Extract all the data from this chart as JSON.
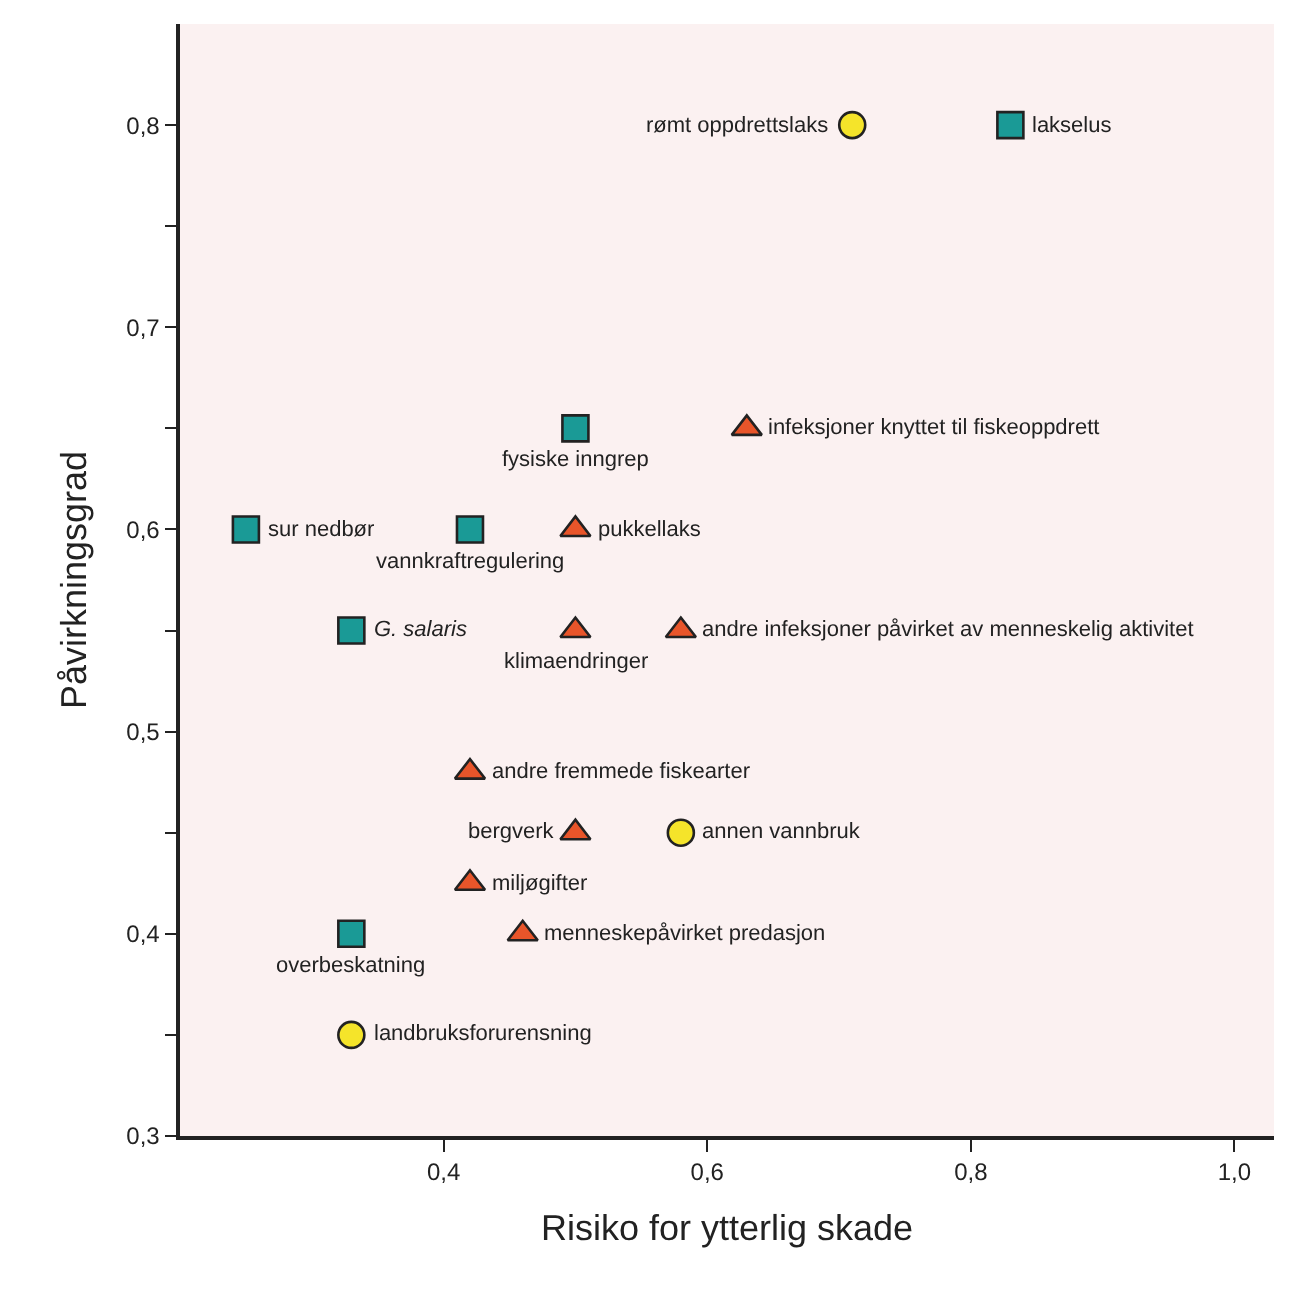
{
  "chart_data": {
    "type": "scatter",
    "xlabel": "Risiko for ytterlig skade",
    "ylabel": "Påvirkningsgrad",
    "xlim": [
      0.2,
      1.03
    ],
    "xticks": [
      {
        "value": 0.4,
        "label": "0,4"
      },
      {
        "value": 0.6,
        "label": "0,6"
      },
      {
        "value": 0.8,
        "label": "0,8"
      },
      {
        "value": 1.0,
        "label": "1,0"
      }
    ],
    "ylim": [
      0.3,
      0.85
    ],
    "yticks": [
      {
        "value": 0.3,
        "label": "0,3"
      },
      {
        "value": 0.35,
        "label": null
      },
      {
        "value": 0.4,
        "label": "0,4"
      },
      {
        "value": 0.45,
        "label": null
      },
      {
        "value": 0.5,
        "label": "0,5"
      },
      {
        "value": 0.55,
        "label": null
      },
      {
        "value": 0.6,
        "label": "0,6"
      },
      {
        "value": 0.65,
        "label": null
      },
      {
        "value": 0.7,
        "label": "0,7"
      },
      {
        "value": 0.75,
        "label": null
      },
      {
        "value": 0.8,
        "label": "0,8"
      }
    ],
    "grid": false,
    "series": [
      {
        "color": "#1a9a96",
        "marker": "square",
        "x": [
          0.83,
          0.5,
          0.25,
          0.42,
          0.33,
          0.33
        ],
        "values": [
          0.8,
          0.65,
          0.6,
          0.6,
          0.55,
          0.4
        ]
      },
      {
        "color": "#e8552a",
        "marker": "triangle",
        "x": [
          0.63,
          0.5,
          0.5,
          0.58,
          0.42,
          0.5,
          0.42,
          0.46
        ],
        "values": [
          0.65,
          0.6,
          0.55,
          0.55,
          0.48,
          0.45,
          0.425,
          0.4
        ]
      },
      {
        "color": "#f5e42a",
        "marker": "circle",
        "x": [
          0.71,
          0.58,
          0.33
        ],
        "values": [
          0.8,
          0.45,
          0.35
        ]
      }
    ],
    "annotations": [
      {
        "text": "rømt oppdrettslaks",
        "x": 0.71,
        "y": 0.8
      },
      {
        "text": "lakselus",
        "x": 0.83,
        "y": 0.8
      },
      {
        "text": "fysiske inngrep",
        "x": 0.5,
        "y": 0.65
      },
      {
        "text": "infeksjoner knyttet til fiskeoppdrett",
        "x": 0.63,
        "y": 0.65
      },
      {
        "text": "sur nedbør",
        "x": 0.25,
        "y": 0.6
      },
      {
        "text": "vannkraftregulering",
        "x": 0.42,
        "y": 0.6
      },
      {
        "text": "pukkellaks",
        "x": 0.5,
        "y": 0.6
      },
      {
        "text": "G. salaris",
        "x": 0.33,
        "y": 0.55
      },
      {
        "text": "klimaendringer",
        "x": 0.5,
        "y": 0.55
      },
      {
        "text": "andre infeksjoner påvirket av menneskelig aktivitet",
        "x": 0.58,
        "y": 0.55
      },
      {
        "text": "andre fremmede fiskearter",
        "x": 0.42,
        "y": 0.48
      },
      {
        "text": "bergverk",
        "x": 0.5,
        "y": 0.45
      },
      {
        "text": "annen vannbruk",
        "x": 0.58,
        "y": 0.45
      },
      {
        "text": "miljøgifter",
        "x": 0.42,
        "y": 0.425
      },
      {
        "text": "menneskepåvirket predasjon",
        "x": 0.46,
        "y": 0.4
      },
      {
        "text": "overbeskatning",
        "x": 0.33,
        "y": 0.4
      },
      {
        "text": "landbruksforurensning",
        "x": 0.33,
        "y": 0.35
      }
    ]
  }
}
